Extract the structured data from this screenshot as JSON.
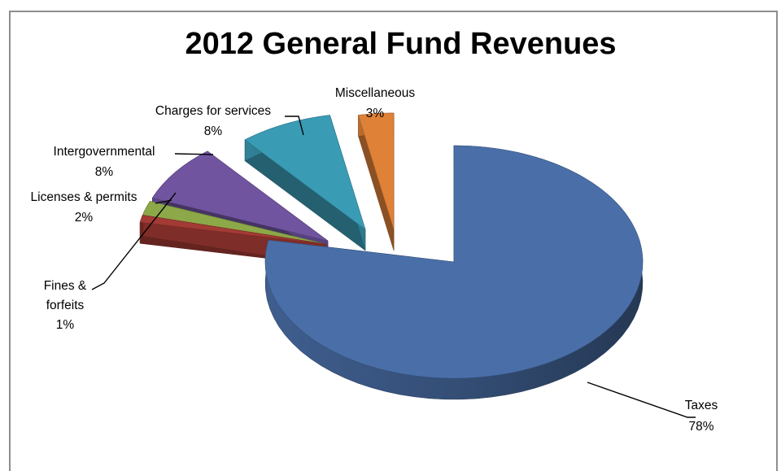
{
  "chart_data": {
    "type": "pie",
    "title": "2012 General Fund Revenues",
    "slices": [
      {
        "label": "Taxes",
        "value": 78,
        "display": "78%",
        "color": "#4a6fa8"
      },
      {
        "label": "Fines & forfeits",
        "value": 1,
        "display": "1%",
        "color": "#a33a34"
      },
      {
        "label": "Licenses & permits",
        "value": 2,
        "display": "2%",
        "color": "#8ca848"
      },
      {
        "label": "Intergovernmental",
        "value": 8,
        "display": "8%",
        "color": "#7054a0"
      },
      {
        "label": "Charges for services",
        "value": 8,
        "display": "8%",
        "color": "#3a9bb5"
      },
      {
        "label": "Miscellaneous",
        "value": 3,
        "display": "3%",
        "color": "#e08138"
      }
    ],
    "label_lines": {
      "Taxes": [
        "Taxes"
      ],
      "Fines & forfeits": [
        "Fines &",
        "forfeits"
      ],
      "Licenses & permits": [
        "Licenses & permits"
      ],
      "Intergovernmental": [
        "Intergovernmental"
      ],
      "Charges for services": [
        "Charges for services"
      ],
      "Miscellaneous": [
        "Miscellaneous"
      ]
    },
    "style": "3d-exploded",
    "legend": "none"
  }
}
